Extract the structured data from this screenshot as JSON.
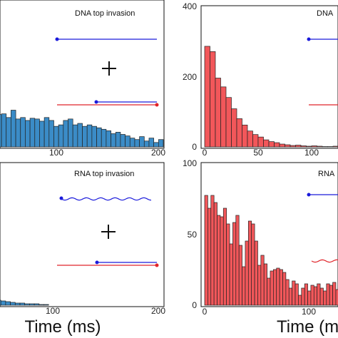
{
  "colors": {
    "blue_bar": "#3b8cc7",
    "red_bar": "#f2575a",
    "bar_edge": "#222222",
    "blue_strand": "#1a1adb",
    "red_strand": "#e0242a"
  },
  "chart_data": [
    {
      "type": "bar",
      "title": "DNA top invasion",
      "xlabel": "Time (ms)",
      "ylabel": "",
      "xlim": [
        0,
        200
      ],
      "ylim": [
        0,
        200
      ],
      "x_ticks": [
        "100",
        "200"
      ],
      "y_ticks": [],
      "bin_width": 5,
      "values": [
        72,
        63,
        55,
        48,
        52,
        44,
        45,
        40,
        50,
        38,
        40,
        36,
        39,
        38,
        35,
        40,
        36,
        28,
        30,
        36,
        38,
        30,
        32,
        28,
        30,
        28,
        26,
        24,
        22,
        18,
        20,
        17,
        15,
        12,
        10,
        14,
        8,
        12,
        6,
        10
      ],
      "color": "blue_bar",
      "annotation": "strand-invasion-schematic-straight"
    },
    {
      "type": "bar",
      "title": "DNA",
      "xlabel": "",
      "ylabel": "",
      "xlim": [
        0,
        100
      ],
      "ylim": [
        0,
        400
      ],
      "x_ticks": [
        "0",
        "50",
        "100"
      ],
      "y_ticks": [
        "0",
        "200",
        "400"
      ],
      "bin_width": 5,
      "values": [
        285,
        270,
        195,
        170,
        140,
        108,
        80,
        62,
        45,
        35,
        28,
        20,
        15,
        12,
        8,
        6,
        4,
        5,
        3,
        2,
        3,
        2,
        1,
        1,
        2,
        1,
        1,
        1
      ],
      "color": "red_bar",
      "annotation": "strand-invasion-schematic-straight"
    },
    {
      "type": "bar",
      "title": "RNA top invasion",
      "xlabel": "Time (ms)",
      "ylabel": "",
      "xlim": [
        0,
        200
      ],
      "ylim": [
        0,
        200
      ],
      "x_ticks": [
        "100",
        "200"
      ],
      "y_ticks": [],
      "bin_width": 5,
      "values": [
        15,
        12,
        10,
        9,
        8,
        7,
        6,
        5,
        4,
        3,
        3,
        2,
        2,
        2,
        1,
        1
      ],
      "color": "blue_bar",
      "annotation": "strand-invasion-schematic-wavy"
    },
    {
      "type": "bar",
      "title": "RNA",
      "xlabel": "Time (ms)",
      "ylabel": "",
      "xlim": [
        0,
        100
      ],
      "ylim": [
        0,
        100
      ],
      "x_ticks": [
        "0",
        "100"
      ],
      "y_ticks": [
        "0",
        "50",
        "100"
      ],
      "bin_width": 3,
      "values": [
        77,
        68,
        77,
        72,
        63,
        62,
        68,
        57,
        43,
        58,
        63,
        42,
        27,
        45,
        59,
        57,
        45,
        28,
        35,
        29,
        19,
        24,
        25,
        26,
        25,
        23,
        18,
        12,
        17,
        15,
        7,
        12,
        15,
        10,
        14,
        13,
        15,
        12,
        10,
        15,
        14,
        16,
        11,
        9,
        10,
        14,
        12,
        9,
        11,
        12
      ],
      "color": "red_bar",
      "annotation": "strand-invasion-schematic-wavy"
    }
  ]
}
